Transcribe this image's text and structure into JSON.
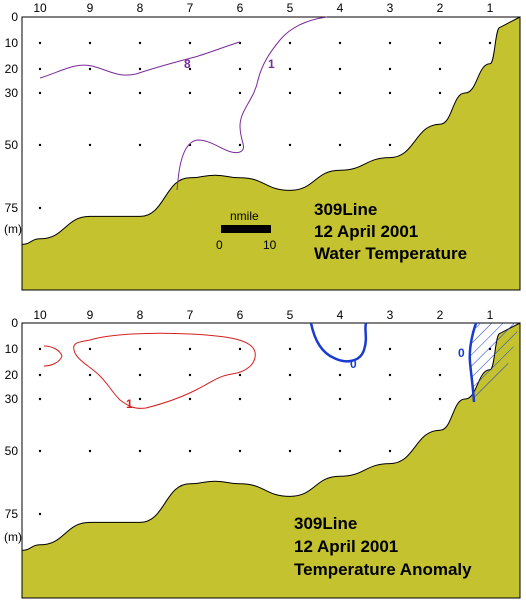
{
  "colors": {
    "land": "#c4c22e",
    "temperature_contour": "#7a2a9a",
    "positive_anomaly": "#d42020",
    "negative_anomaly": "#1a3bd0",
    "station_dot": "#000000"
  },
  "scale_bar": {
    "label": "nmile",
    "start": "0",
    "end": "10"
  },
  "chart_data": [
    {
      "type": "contour",
      "title_lines": [
        "309Line",
        "12 April 2001",
        "Water Temperature"
      ],
      "x_ticks": [
        "10",
        "9",
        "8",
        "7",
        "6",
        "5",
        "4",
        "3",
        "2",
        "1"
      ],
      "y_ticks": [
        "0",
        "10",
        "20",
        "30",
        "50",
        "75"
      ],
      "y_unit": "(m)",
      "y_direction": "depth increasing downward",
      "stations": [
        10,
        9,
        8,
        7,
        6,
        5,
        4,
        3,
        2,
        1
      ],
      "sample_depths": [
        10,
        20,
        30,
        50,
        75
      ],
      "contour_labels": [
        "8",
        "1"
      ],
      "bottom_profile": [
        {
          "station": 10.4,
          "depth": 88
        },
        {
          "station": 10,
          "depth": 86
        },
        {
          "station": 9,
          "depth": 78
        },
        {
          "station": 8,
          "depth": 78
        },
        {
          "station": 7,
          "depth": 63
        },
        {
          "station": 6.5,
          "depth": 62
        },
        {
          "station": 6,
          "depth": 63
        },
        {
          "station": 5,
          "depth": 68
        },
        {
          "station": 4,
          "depth": 60
        },
        {
          "station": 3,
          "depth": 55
        },
        {
          "station": 2,
          "depth": 42
        },
        {
          "station": 1.5,
          "depth": 30
        },
        {
          "station": 1,
          "depth": 18
        },
        {
          "station": 0.8,
          "depth": 4
        }
      ]
    },
    {
      "type": "contour",
      "title_lines": [
        "309Line",
        "12 April 2001",
        "Temperature Anomaly"
      ],
      "x_ticks": [
        "10",
        "9",
        "8",
        "7",
        "6",
        "5",
        "4",
        "3",
        "2",
        "1"
      ],
      "y_ticks": [
        "0",
        "10",
        "20",
        "30",
        "50",
        "75"
      ],
      "y_unit": "(m)",
      "y_direction": "depth increasing downward",
      "stations": [
        10,
        9,
        8,
        7,
        6,
        5,
        4,
        3,
        2,
        1
      ],
      "sample_depths": [
        10,
        20,
        30,
        50,
        75
      ],
      "contour_labels": [
        "1",
        "0",
        "0"
      ],
      "bottom_profile": [
        {
          "station": 10.4,
          "depth": 88
        },
        {
          "station": 10,
          "depth": 86
        },
        {
          "station": 9,
          "depth": 78
        },
        {
          "station": 8,
          "depth": 78
        },
        {
          "station": 7,
          "depth": 63
        },
        {
          "station": 6.5,
          "depth": 62
        },
        {
          "station": 6,
          "depth": 63
        },
        {
          "station": 5,
          "depth": 68
        },
        {
          "station": 4,
          "depth": 60
        },
        {
          "station": 3,
          "depth": 55
        },
        {
          "station": 2,
          "depth": 42
        },
        {
          "station": 1.5,
          "depth": 30
        },
        {
          "station": 1,
          "depth": 18
        },
        {
          "station": 0.8,
          "depth": 4
        }
      ]
    }
  ]
}
